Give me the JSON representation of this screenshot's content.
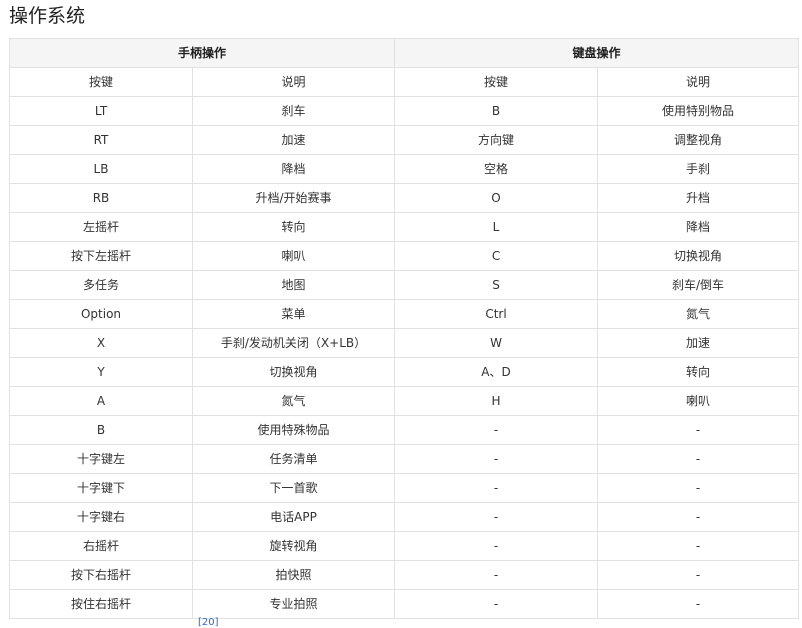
{
  "title": "操作系统",
  "table": {
    "groups": [
      "手柄操作",
      "键盘操作"
    ],
    "headers": [
      "按键",
      "说明",
      "按键",
      "说明"
    ],
    "rows": [
      [
        "LT",
        "刹车",
        "B",
        "使用特别物品"
      ],
      [
        "RT",
        "加速",
        "方向键",
        "调整视角"
      ],
      [
        "LB",
        "降档",
        "空格",
        "手刹"
      ],
      [
        "RB",
        "升档/开始赛事",
        "O",
        "升档"
      ],
      [
        "左摇杆",
        "转向",
        "L",
        "降档"
      ],
      [
        "按下左摇杆",
        "喇叭",
        "C",
        "切换视角"
      ],
      [
        "多任务",
        "地图",
        "S",
        "刹车/倒车"
      ],
      [
        "Option",
        "菜单",
        "Ctrl",
        "氮气"
      ],
      [
        "X",
        "手刹/发动机关闭（X+LB）",
        "W",
        "加速"
      ],
      [
        "Y",
        "切换视角",
        "A、D",
        "转向"
      ],
      [
        "A",
        "氮气",
        "H",
        "喇叭"
      ],
      [
        "B",
        "使用特殊物品",
        "-",
        "-"
      ],
      [
        "十字键左",
        "任务清单",
        "-",
        "-"
      ],
      [
        "十字键下",
        "下一首歌",
        "-",
        "-"
      ],
      [
        "十字键右",
        "电话APP",
        "-",
        "-"
      ],
      [
        "右摇杆",
        "旋转视角",
        "-",
        "-"
      ],
      [
        "按下右摇杆",
        "拍快照",
        "-",
        "-"
      ],
      [
        "按住右摇杆",
        "专业拍照",
        "-",
        "-"
      ]
    ]
  },
  "reference": "[20]"
}
